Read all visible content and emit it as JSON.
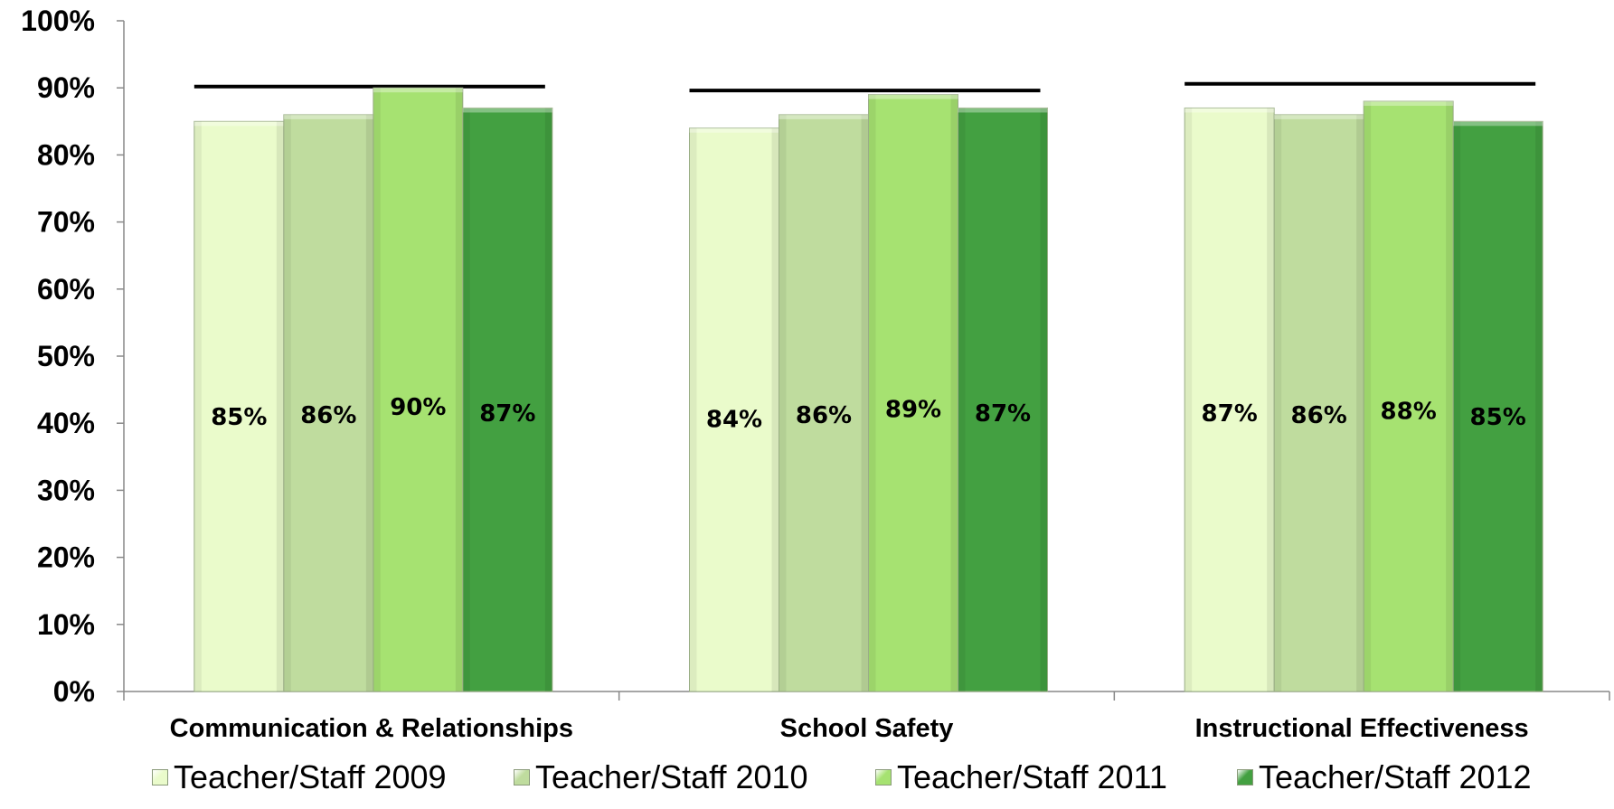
{
  "chart_data": {
    "type": "bar",
    "categories": [
      "Communication & Relationships",
      "School Safety",
      "Instructional Effectiveness"
    ],
    "series": [
      {
        "name": "Teacher/Staff 2009",
        "values": [
          85,
          84,
          87
        ],
        "labels": [
          "85%",
          "84%",
          "87%"
        ],
        "color": "#eafbcb"
      },
      {
        "name": "Teacher/Staff 2010",
        "values": [
          86,
          86,
          86
        ],
        "labels": [
          "86%",
          "86%",
          "86%"
        ],
        "color": "#bfdc9e"
      },
      {
        "name": "Teacher/Staff 2011",
        "values": [
          90,
          89,
          88
        ],
        "labels": [
          "90%",
          "89%",
          "88%"
        ],
        "color": "#a6e271"
      },
      {
        "name": "Teacher/Staff 2012",
        "values": [
          87,
          87,
          85
        ],
        "labels": [
          "87%",
          "87%",
          "85%"
        ],
        "color": "#43a041"
      }
    ],
    "target_lines": [
      90.2,
      89.6,
      90.6
    ],
    "ylim": [
      0,
      100
    ],
    "yticks": [
      "0%",
      "10%",
      "20%",
      "30%",
      "40%",
      "50%",
      "60%",
      "70%",
      "80%",
      "90%",
      "100%"
    ],
    "xlabel": "",
    "ylabel": "",
    "legend_position": "bottom",
    "grid": false
  }
}
